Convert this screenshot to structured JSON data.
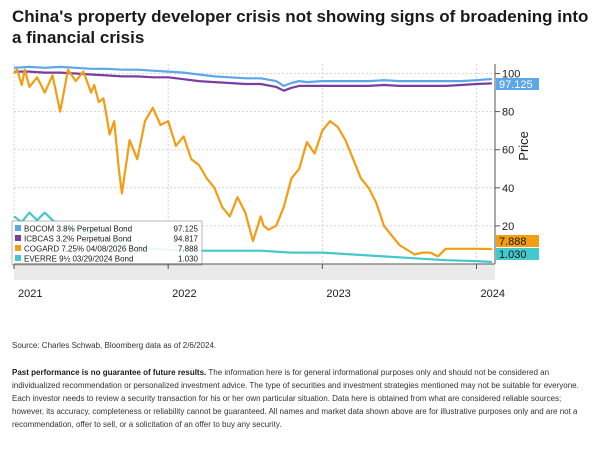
{
  "title": "China's property developer crisis not showing signs of broadening into a financial crisis",
  "source": "Source: Charles Schwab, Bloomberg data as of 2/6/2024.",
  "disclaimer_bold": "Past performance is no guarantee of future results.",
  "disclaimer_text": " The information here is for general informational purposes only and should not be considered an individualized recommendation or personalized investment advice. The type of securities and investment strategies mentioned may not be suitable for everyone. Each investor needs to review a security transaction for his or her own particular situation. Data here is obtained from what are considered reliable sources; however, its accuracy, completeness or reliability cannot be guaranteed. All names and market data shown above are for illustrative purposes only and are not a recommendation, offer to sell, or a solicitation of an offer to buy any security.",
  "chart_data": {
    "type": "line",
    "ylabel": "Price",
    "ylim": [
      0,
      105
    ],
    "yticks": [
      20,
      40,
      60,
      80,
      100
    ],
    "xlim": [
      2021.0,
      2024.12
    ],
    "xticks": [
      {
        "label": "2021",
        "x": 2021.0
      },
      {
        "label": "2022",
        "x": 2022.0
      },
      {
        "label": "2023",
        "x": 2023.0
      },
      {
        "label": "2024",
        "x": 2024.0
      }
    ],
    "grid": true,
    "legend_position": "bottom-left",
    "series": [
      {
        "name": "BOCOM 3.8% Perpetual Bond",
        "last": "97.125",
        "color": "#5ba7e8",
        "x": [
          2021.0,
          2021.1,
          2021.2,
          2021.3,
          2021.4,
          2021.5,
          2021.6,
          2021.7,
          2021.8,
          2021.9,
          2022.0,
          2022.1,
          2022.2,
          2022.3,
          2022.4,
          2022.5,
          2022.6,
          2022.7,
          2022.75,
          2022.8,
          2022.85,
          2022.9,
          2023.0,
          2023.1,
          2023.2,
          2023.3,
          2023.4,
          2023.5,
          2023.6,
          2023.7,
          2023.8,
          2023.9,
          2024.0,
          2024.1
        ],
        "y": [
          103,
          103.5,
          103,
          103.5,
          103,
          102.5,
          102.5,
          102,
          102,
          101.5,
          101,
          100.5,
          99.5,
          98.5,
          98,
          97.5,
          97.5,
          96,
          93.5,
          95,
          96,
          95.5,
          96,
          96,
          96,
          96,
          96.5,
          96,
          96,
          96,
          96,
          96,
          96.5,
          97.125
        ]
      },
      {
        "name": "ICBCAS 3.2% Perpetual Bond",
        "last": "94.817",
        "color": "#7b3ea0",
        "x": [
          2021.0,
          2021.1,
          2021.2,
          2021.3,
          2021.4,
          2021.5,
          2021.6,
          2021.7,
          2021.8,
          2021.9,
          2022.0,
          2022.1,
          2022.2,
          2022.3,
          2022.4,
          2022.5,
          2022.6,
          2022.7,
          2022.75,
          2022.8,
          2022.85,
          2022.9,
          2023.0,
          2023.1,
          2023.2,
          2023.3,
          2023.4,
          2023.5,
          2023.6,
          2023.7,
          2023.8,
          2023.9,
          2024.0,
          2024.1
        ],
        "y": [
          101,
          101,
          100.5,
          100.5,
          100,
          99.5,
          99,
          98.5,
          98.5,
          98,
          98,
          97,
          96,
          95.5,
          95,
          94.5,
          94.5,
          93,
          91,
          92.5,
          93.5,
          93.5,
          93.5,
          93.5,
          93.5,
          93.5,
          94,
          93.5,
          93.5,
          93.5,
          93.5,
          94,
          94.5,
          94.817
        ]
      },
      {
        "name": "COGARD 7.25% 04/08/2026 Bond",
        "last": "7.888",
        "color": "#f29d12",
        "x": [
          2021.0,
          2021.02,
          2021.05,
          2021.07,
          2021.1,
          2021.15,
          2021.2,
          2021.25,
          2021.3,
          2021.35,
          2021.4,
          2021.45,
          2021.5,
          2021.52,
          2021.55,
          2021.58,
          2021.6,
          2021.62,
          2021.65,
          2021.68,
          2021.7,
          2021.75,
          2021.8,
          2021.85,
          2021.9,
          2021.95,
          2022.0,
          2022.05,
          2022.1,
          2022.15,
          2022.2,
          2022.25,
          2022.3,
          2022.35,
          2022.4,
          2022.45,
          2022.5,
          2022.55,
          2022.6,
          2022.62,
          2022.65,
          2022.7,
          2022.75,
          2022.8,
          2022.85,
          2022.9,
          2022.95,
          2023.0,
          2023.05,
          2023.1,
          2023.15,
          2023.2,
          2023.25,
          2023.3,
          2023.35,
          2023.4,
          2023.5,
          2023.6,
          2023.65,
          2023.7,
          2023.75,
          2023.8,
          2023.9,
          2024.0,
          2024.1
        ],
        "y": [
          100,
          102,
          94,
          102,
          93,
          98,
          90,
          99,
          80,
          102,
          96,
          101,
          90,
          94,
          85,
          87,
          78,
          68,
          75,
          50,
          37,
          65,
          55,
          75,
          82,
          73,
          75,
          62,
          67,
          55,
          52,
          45,
          40,
          30,
          25,
          35,
          27,
          12,
          25,
          20,
          18,
          20,
          30,
          45,
          50,
          64,
          58,
          70,
          75,
          72,
          65,
          55,
          45,
          40,
          32,
          20,
          10,
          5,
          6,
          6,
          4,
          8,
          8,
          8,
          7.888
        ]
      },
      {
        "name": "EVERRE 9½ 03/29/2024 Bond",
        "last": "1.030",
        "color": "#43c8cc",
        "x": [
          2021.0,
          2021.05,
          2021.1,
          2021.15,
          2021.2,
          2021.25,
          2021.3,
          2021.35,
          2021.4,
          2021.45,
          2021.5,
          2021.55,
          2021.6,
          2021.65,
          2021.7,
          2021.75,
          2021.8,
          2021.9,
          2022.0,
          2022.2,
          2022.4,
          2022.6,
          2022.8,
          2023.0,
          2023.2,
          2023.4,
          2023.6,
          2023.8,
          2024.0,
          2024.1
        ],
        "y": [
          25,
          22,
          27,
          23,
          27,
          23,
          20,
          18,
          19,
          16,
          17,
          14,
          14,
          11,
          10,
          10,
          9,
          8,
          7.5,
          7,
          7,
          7,
          6,
          6,
          5,
          4,
          3,
          2,
          1.5,
          1.03
        ]
      }
    ]
  }
}
